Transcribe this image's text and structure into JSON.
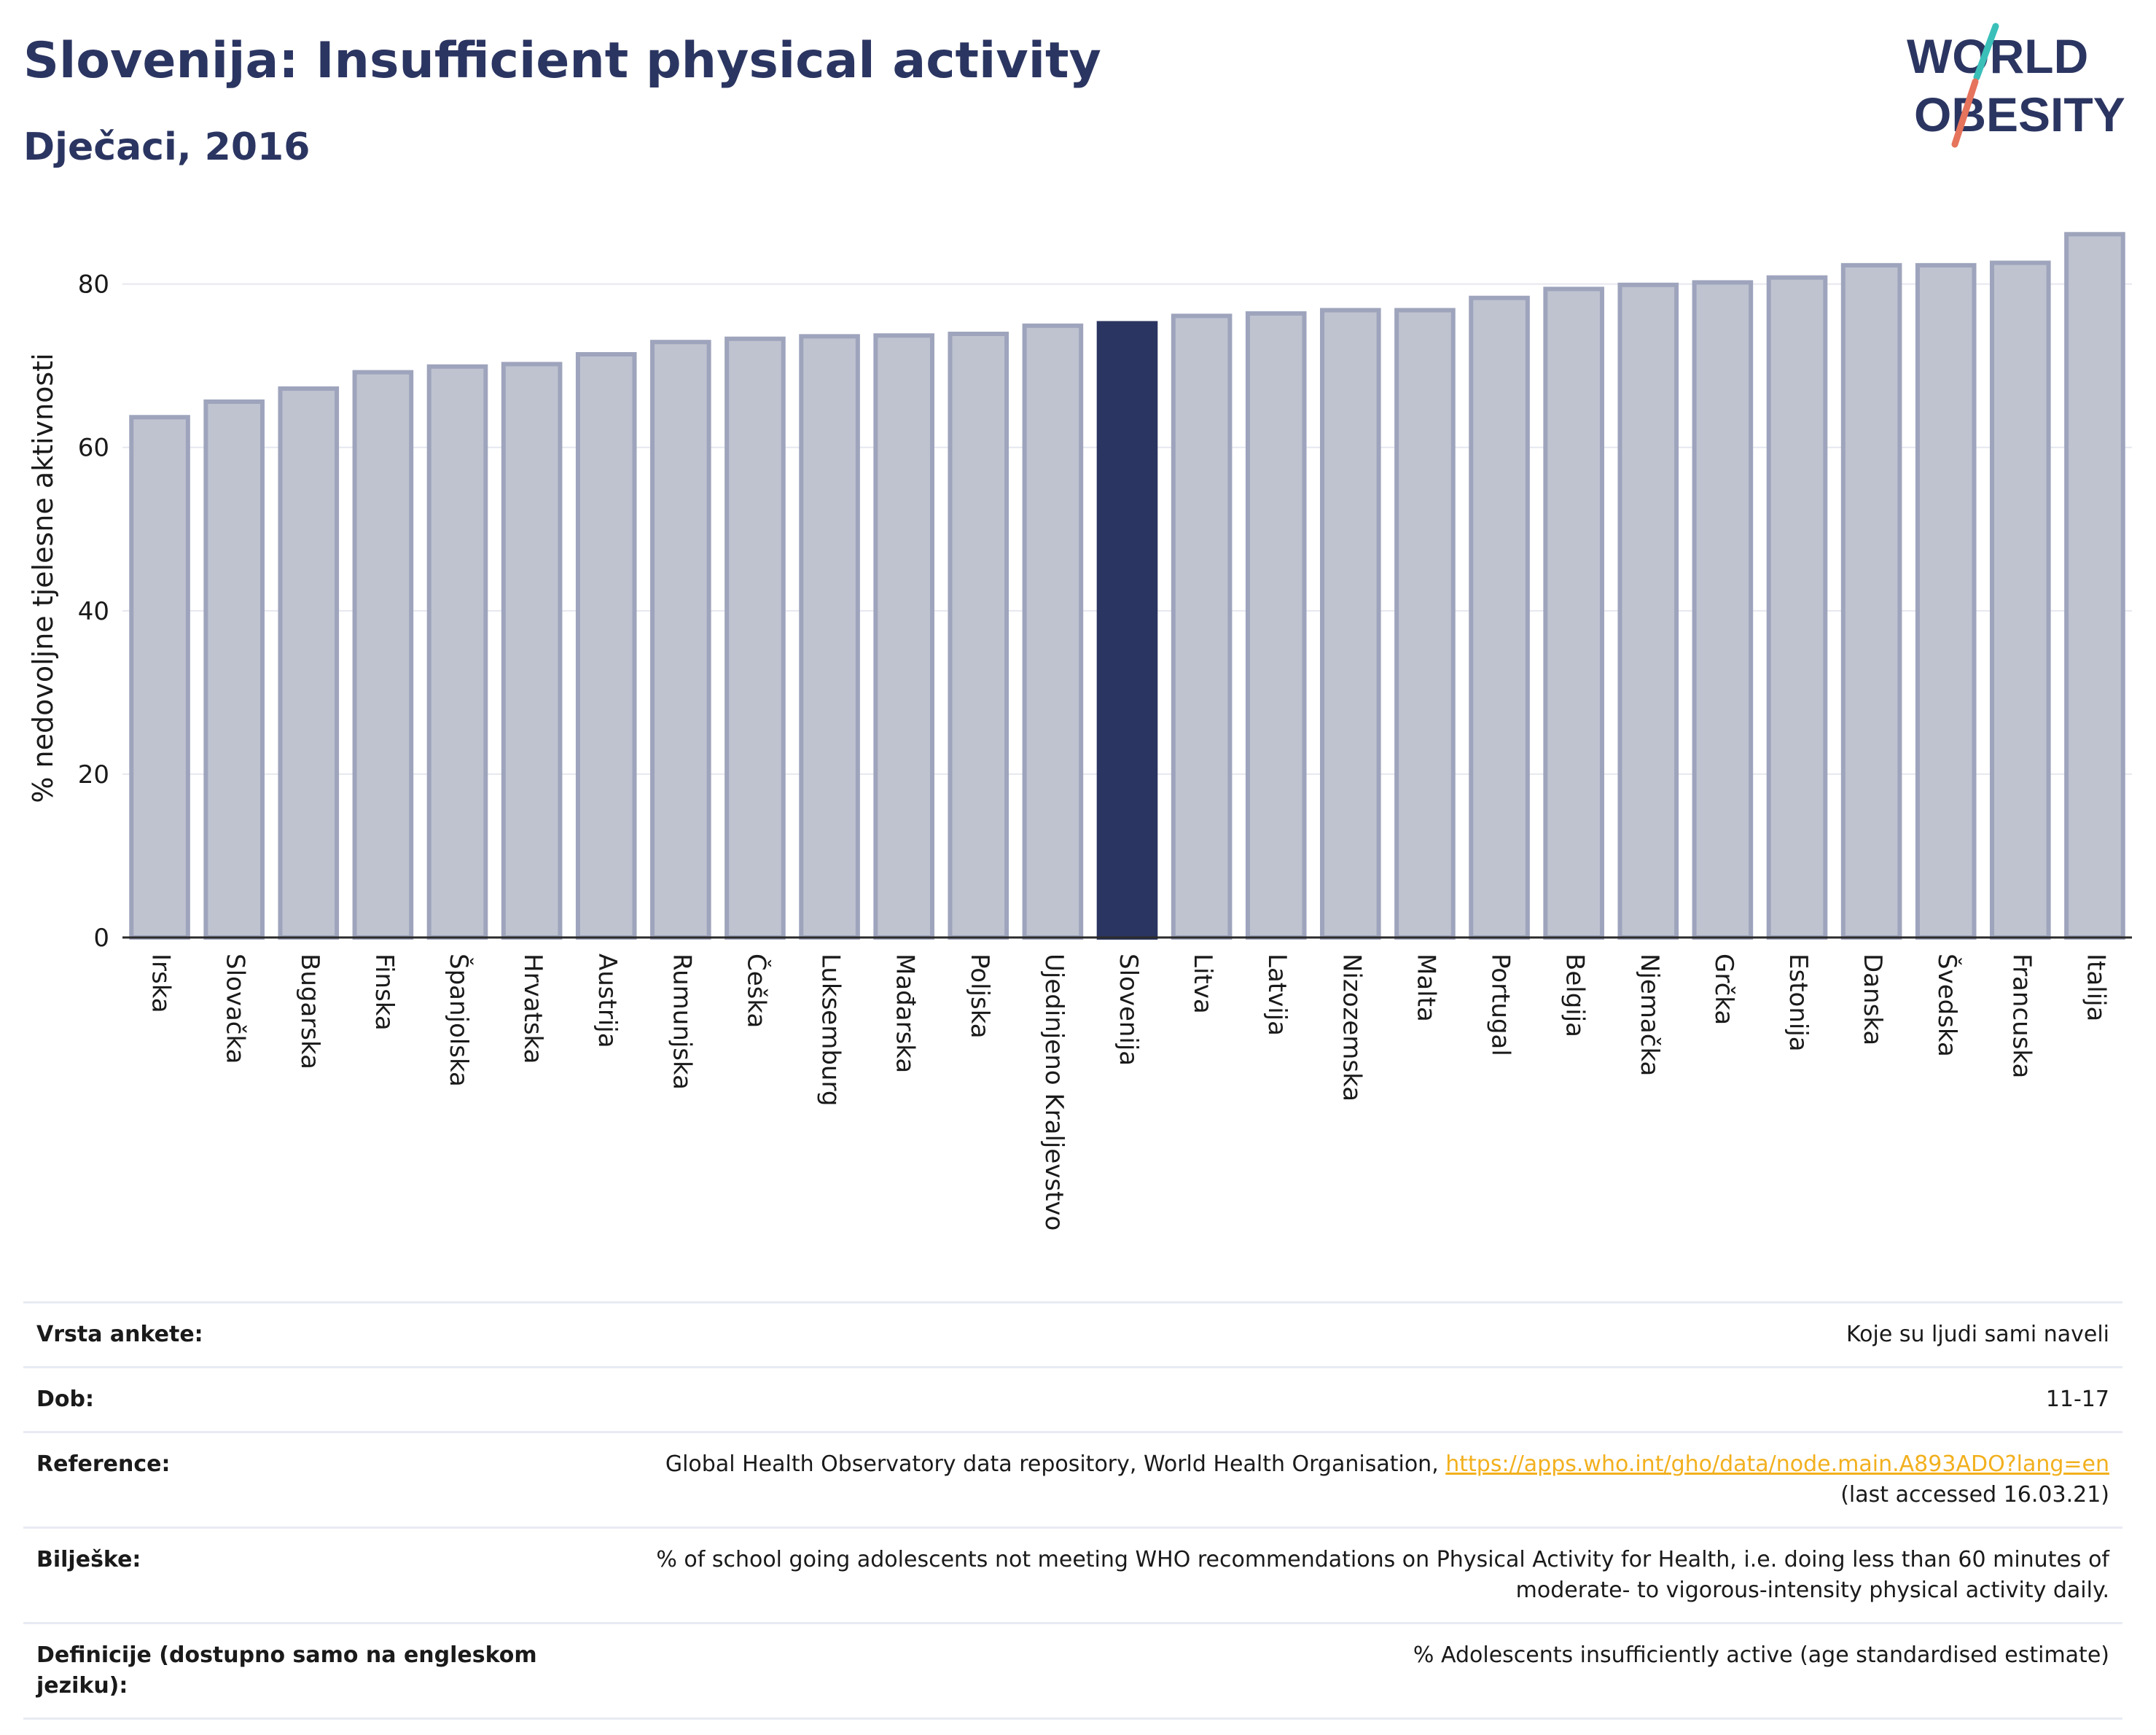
{
  "header": {
    "title": "Slovenija: Insufficient physical activity",
    "subtitle": "Dječaci, 2016"
  },
  "logo": {
    "line1": "WORLD",
    "line2": "OBESITY"
  },
  "colors": {
    "highlight": "#2b3561",
    "bar_fill": "#bfc3d0",
    "bar_stroke": "#9ea4bc",
    "logo_slash_teal": "#3bbfb9",
    "logo_slash_coral": "#e6735c",
    "link": "#f2b01e"
  },
  "chart_data": {
    "type": "bar",
    "ylabel": "% nedovoljne tjelesne aktivnosti",
    "xlabel": "",
    "ylim": [
      0,
      88
    ],
    "yticks": [
      0,
      20,
      40,
      60,
      80
    ],
    "grid": true,
    "highlight": "Slovenija",
    "categories": [
      "Irska",
      "Slovačka",
      "Bugarska",
      "Finska",
      "Španjolska",
      "Hrvatska",
      "Austrija",
      "Rumunjska",
      "Češka",
      "Luksemburg",
      "Mađarska",
      "Poljska",
      "Ujedinjeno Kraljevstvo",
      "Slovenija",
      "Litva",
      "Latvija",
      "Nizozemska",
      "Malta",
      "Portugal",
      "Belgija",
      "Njemačka",
      "Grčka",
      "Estonija",
      "Danska",
      "Švedska",
      "Francuska",
      "Italija"
    ],
    "values": [
      63.7,
      65.6,
      67.2,
      69.2,
      69.9,
      70.2,
      71.4,
      72.9,
      73.3,
      73.6,
      73.7,
      73.9,
      74.9,
      75.2,
      76.1,
      76.4,
      76.8,
      76.8,
      78.3,
      79.4,
      79.9,
      80.2,
      80.8,
      82.3,
      82.3,
      82.6,
      86.1
    ]
  },
  "info_table": [
    {
      "label": "Vrsta ankete:",
      "value": "Koje su ljudi sami naveli"
    },
    {
      "label": "Dob:",
      "value": "11-17"
    },
    {
      "label": "Reference:",
      "value": "Global Health Observatory data repository, World Health Organisation, ",
      "link": "https://apps.who.int/gho/data/node.main.A893ADO?lang=en",
      "value2": "(last accessed 16.03.21)"
    },
    {
      "label": "Bilješke:",
      "value": "% of school going adolescents not meeting WHO recommendations on Physical Activity for Health, i.e. doing less than 60 minutes of moderate- to vigorous-intensity physical activity daily."
    },
    {
      "label": "Definicije (dostupno samo na engleskom jeziku):",
      "value": "% Adolescents insufficiently active (age standardised estimate)"
    }
  ]
}
